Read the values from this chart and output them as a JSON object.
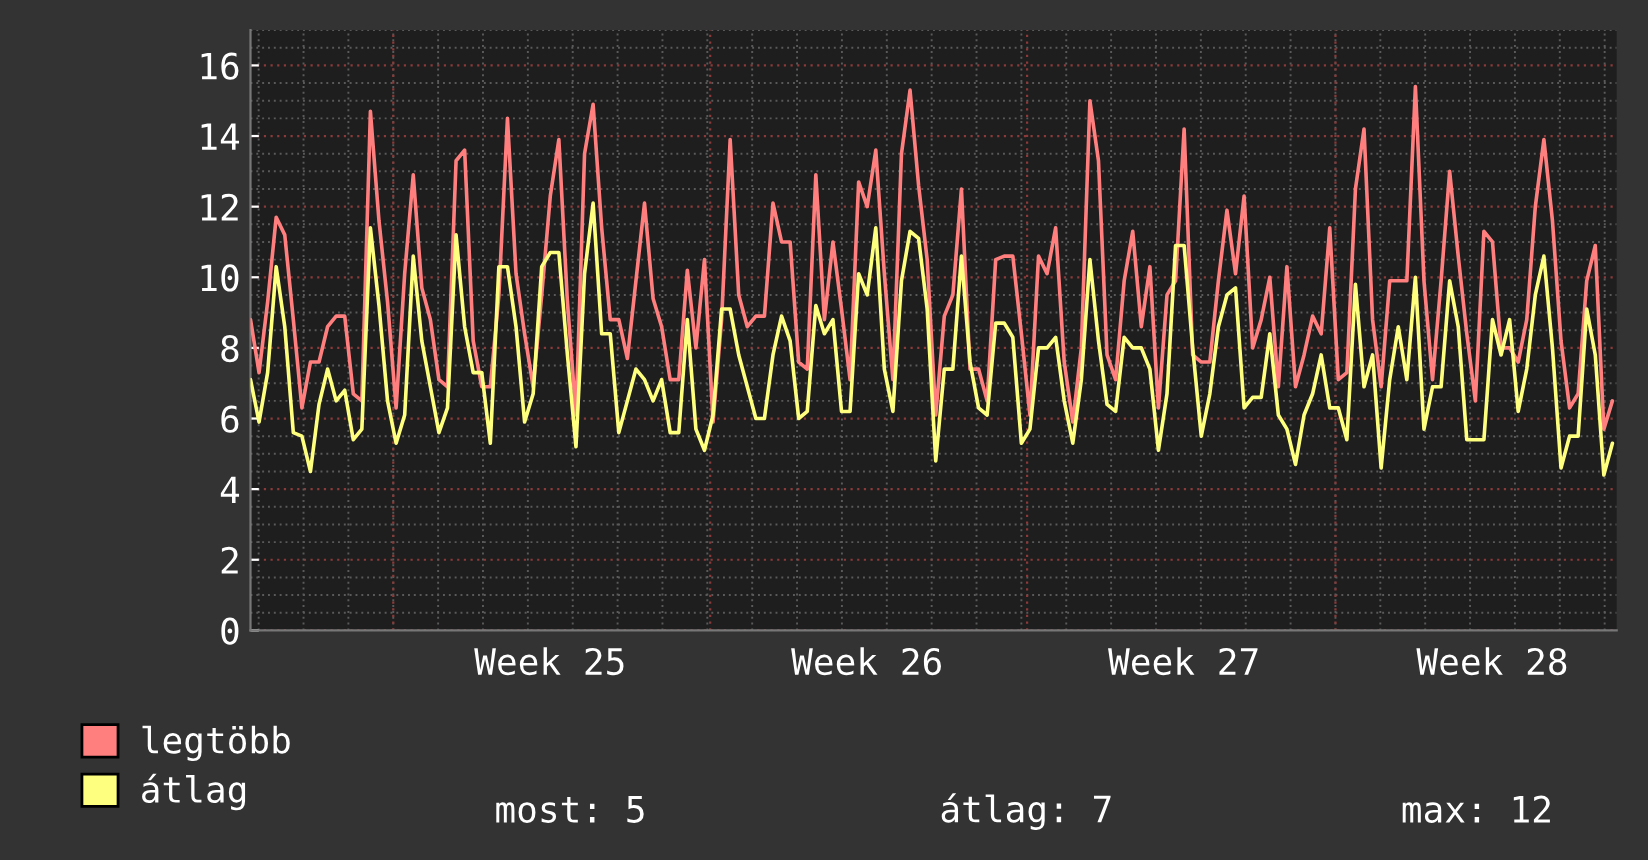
{
  "chart_data": {
    "type": "line",
    "categories": [
      null,
      null,
      null,
      null,
      null,
      null,
      null,
      null,
      null,
      null,
      null,
      null,
      null,
      null,
      null,
      null,
      null,
      null,
      null,
      null,
      null,
      null,
      null,
      null,
      null,
      null,
      null,
      null,
      null,
      null,
      null,
      null,
      null,
      null,
      null,
      "Week 25",
      null,
      null,
      null,
      null,
      null,
      null,
      null,
      null,
      null,
      null,
      null,
      null,
      null,
      null,
      null,
      null,
      null,
      null,
      null,
      null,
      null,
      null,
      null,
      null,
      null,
      null,
      null,
      null,
      null,
      null,
      null,
      null,
      null,
      null,
      null,
      null,
      "Week 26",
      null,
      null,
      null,
      null,
      null,
      null,
      null,
      null,
      null,
      null,
      null,
      null,
      null,
      null,
      null,
      null,
      null,
      null,
      null,
      null,
      null,
      null,
      null,
      null,
      null,
      null,
      null,
      null,
      null,
      null,
      null,
      null,
      null,
      null,
      null,
      null,
      "Week 27",
      null,
      null,
      null,
      null,
      null,
      null,
      null,
      null,
      null,
      null,
      null,
      null,
      null,
      null,
      null,
      null,
      null,
      null,
      null,
      null,
      null,
      null,
      null,
      null,
      null,
      null,
      null,
      null,
      null,
      null,
      null,
      null,
      null,
      null,
      null,
      "Week 28",
      null,
      null,
      null,
      null,
      null,
      null,
      null,
      null,
      null,
      null,
      null,
      null,
      null,
      null
    ],
    "ylim": [
      0,
      17
    ],
    "yticks": [
      0,
      2,
      4,
      6,
      8,
      10,
      12,
      14,
      16
    ],
    "grid": true,
    "legend": "bottom left",
    "marker": "none",
    "line_style": "solid",
    "annotations": [
      "most: 5",
      "átlag: 7",
      "max: 12"
    ],
    "series": [
      {
        "name": "legtöbb",
        "color": "#ff7f7f",
        "values": [
          8.8,
          7.3,
          9.3,
          11.7,
          11.2,
          8.8,
          6.3,
          7.6,
          7.6,
          8.6,
          8.9,
          8.9,
          6.7,
          6.5,
          14.7,
          11.6,
          9.3,
          6.3,
          10.1,
          12.9,
          9.7,
          8.8,
          7.1,
          6.9,
          13.3,
          13.6,
          8.2,
          6.9,
          6.9,
          9.5,
          14.5,
          10.1,
          8.4,
          6.9,
          9.5,
          12.3,
          13.9,
          9.3,
          6.1,
          13.5,
          14.9,
          11.4,
          8.8,
          8.8,
          7.7,
          9.9,
          12.1,
          9.4,
          8.6,
          7.1,
          7.1,
          10.2,
          8.0,
          10.5,
          5.9,
          8.8,
          13.9,
          9.5,
          8.6,
          8.9,
          8.9,
          12.1,
          11.0,
          11.0,
          7.6,
          7.4,
          12.9,
          8.8,
          11.0,
          9.1,
          7.1,
          12.7,
          12.0,
          13.6,
          10.1,
          7.1,
          13.5,
          15.3,
          12.6,
          10.5,
          6.1,
          8.9,
          9.5,
          12.5,
          7.4,
          7.4,
          6.5,
          10.5,
          10.6,
          10.6,
          8.4,
          6.1,
          10.6,
          10.1,
          11.4,
          7.6,
          5.9,
          8.0,
          15.0,
          13.3,
          7.8,
          7.1,
          9.9,
          11.3,
          8.6,
          10.3,
          6.3,
          9.5,
          9.9,
          14.2,
          7.8,
          7.6,
          7.6,
          9.9,
          11.9,
          10.1,
          12.3,
          8.0,
          8.8,
          10.0,
          6.9,
          10.3,
          6.9,
          7.8,
          8.9,
          8.4,
          11.4,
          7.1,
          7.3,
          12.5,
          14.2,
          8.8,
          6.9,
          9.9,
          9.9,
          9.9,
          15.4,
          9.9,
          7.1,
          9.9,
          13.0,
          10.6,
          8.4,
          6.5,
          11.3,
          11.0,
          8.0,
          8.0,
          7.6,
          8.8,
          12.0,
          13.9,
          11.6,
          8.2,
          6.3,
          6.7,
          9.9,
          10.9,
          5.7,
          6.5
        ]
      },
      {
        "name": "átlag",
        "color": "#ffff7f",
        "values": [
          7.1,
          5.9,
          7.3,
          10.3,
          8.6,
          5.6,
          5.5,
          4.5,
          6.4,
          7.4,
          6.5,
          6.8,
          5.4,
          5.7,
          11.4,
          9.2,
          6.5,
          5.3,
          6.1,
          10.6,
          8.2,
          6.9,
          5.6,
          6.3,
          11.2,
          8.6,
          7.3,
          7.3,
          5.3,
          10.3,
          10.3,
          8.6,
          5.9,
          6.7,
          10.3,
          10.7,
          10.7,
          7.8,
          5.2,
          10.1,
          12.1,
          8.4,
          8.4,
          5.6,
          6.5,
          7.4,
          7.1,
          6.5,
          7.1,
          5.6,
          5.6,
          8.8,
          5.7,
          5.1,
          6.1,
          9.1,
          9.1,
          7.8,
          6.9,
          6.0,
          6.0,
          7.8,
          8.9,
          8.2,
          6.0,
          6.2,
          9.2,
          8.4,
          8.8,
          6.2,
          6.2,
          10.1,
          9.5,
          11.4,
          7.4,
          6.2,
          9.9,
          11.3,
          11.1,
          9.1,
          4.8,
          7.4,
          7.4,
          10.6,
          7.6,
          6.3,
          6.1,
          8.7,
          8.7,
          8.3,
          5.3,
          5.7,
          8.0,
          8.0,
          8.3,
          6.5,
          5.3,
          7.1,
          10.5,
          8.2,
          6.4,
          6.2,
          8.3,
          8.0,
          8.0,
          7.4,
          5.1,
          6.7,
          10.9,
          10.9,
          8.0,
          5.5,
          6.7,
          8.6,
          9.5,
          9.7,
          6.3,
          6.6,
          6.6,
          8.4,
          6.1,
          5.7,
          4.7,
          6.1,
          6.7,
          7.8,
          6.3,
          6.3,
          5.4,
          9.8,
          6.9,
          7.8,
          4.6,
          7.1,
          8.6,
          7.1,
          10.0,
          5.7,
          6.9,
          6.9,
          9.9,
          8.6,
          5.4,
          5.4,
          5.4,
          8.8,
          7.8,
          8.8,
          6.2,
          7.4,
          9.5,
          10.6,
          8.0,
          4.6,
          5.5,
          5.5,
          9.1,
          7.8,
          4.4,
          5.3
        ]
      }
    ]
  }
}
